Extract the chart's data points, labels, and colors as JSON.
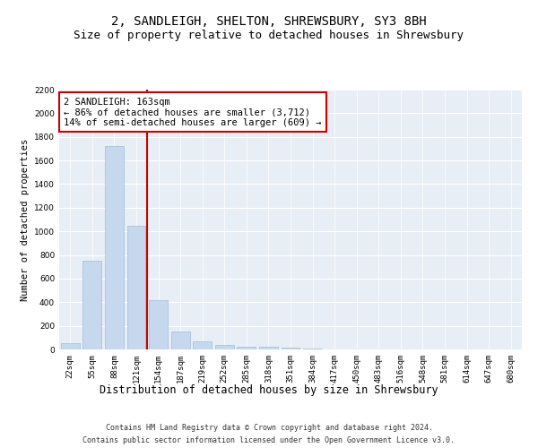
{
  "title": "2, SANDLEIGH, SHELTON, SHREWSBURY, SY3 8BH",
  "subtitle": "Size of property relative to detached houses in Shrewsbury",
  "xlabel": "Distribution of detached houses by size in Shrewsbury",
  "ylabel": "Number of detached properties",
  "categories": [
    "22sqm",
    "55sqm",
    "88sqm",
    "121sqm",
    "154sqm",
    "187sqm",
    "219sqm",
    "252sqm",
    "285sqm",
    "318sqm",
    "351sqm",
    "384sqm",
    "417sqm",
    "450sqm",
    "483sqm",
    "516sqm",
    "548sqm",
    "581sqm",
    "614sqm",
    "647sqm",
    "680sqm"
  ],
  "values": [
    50,
    750,
    1720,
    1050,
    420,
    150,
    70,
    35,
    25,
    20,
    12,
    6,
    2,
    2,
    1,
    1,
    0,
    0,
    0,
    0,
    0
  ],
  "bar_color": "#c5d8ed",
  "bar_edge_color": "#a0bcd8",
  "vline_color": "#cc0000",
  "vline_x": 3.5,
  "annotation_line1": "2 SANDLEIGH: 163sqm",
  "annotation_line2": "← 86% of detached houses are smaller (3,712)",
  "annotation_line3": "14% of semi-detached houses are larger (609) →",
  "annotation_box_facecolor": "#ffffff",
  "annotation_box_edgecolor": "#cc0000",
  "ylim": [
    0,
    2200
  ],
  "yticks": [
    0,
    200,
    400,
    600,
    800,
    1000,
    1200,
    1400,
    1600,
    1800,
    2000,
    2200
  ],
  "plot_bg": "#e8eef5",
  "grid_color": "#ffffff",
  "footer_line1": "Contains HM Land Registry data © Crown copyright and database right 2024.",
  "footer_line2": "Contains public sector information licensed under the Open Government Licence v3.0.",
  "title_fontsize": 10,
  "subtitle_fontsize": 9,
  "xlabel_fontsize": 8.5,
  "ylabel_fontsize": 7.5,
  "tick_fontsize": 6.5,
  "annotation_fontsize": 7.5,
  "footer_fontsize": 6.0
}
